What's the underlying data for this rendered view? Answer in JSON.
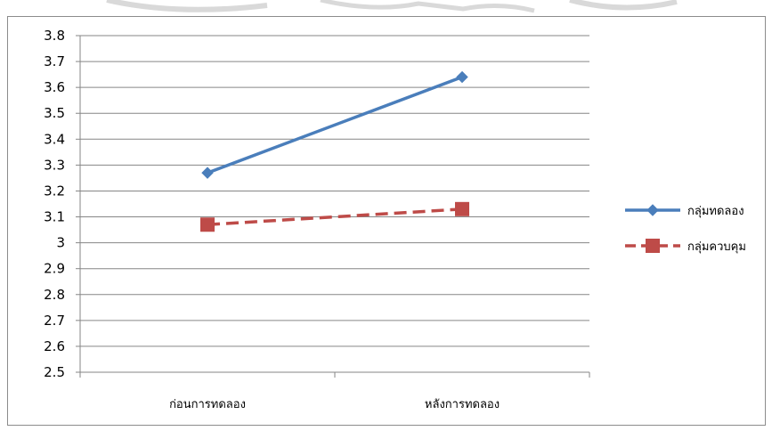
{
  "chart_data": {
    "type": "line",
    "categories": [
      "ก่อนการทดลอง",
      "หลังการทดลอง"
    ],
    "series": [
      {
        "name": "กลุ่มทดลอง",
        "values": [
          3.27,
          3.64
        ],
        "color": "#4a7ebb",
        "dash": "solid",
        "marker": "diamond"
      },
      {
        "name": "กลุ่มควบคุม",
        "values": [
          3.07,
          3.13
        ],
        "color": "#be4b48",
        "dash": "dashed",
        "marker": "square"
      }
    ],
    "ylim": [
      2.5,
      3.8
    ],
    "yticks": [
      "2.5",
      "2.6",
      "2.7",
      "2.8",
      "2.9",
      "3",
      "3.1",
      "3.2",
      "3.3",
      "3.4",
      "3.5",
      "3.6",
      "3.7",
      "3.8"
    ],
    "grid": true,
    "legend_position": "right",
    "title": "",
    "xlabel": "",
    "ylabel": ""
  },
  "watermark_color": "#d9d9d9"
}
